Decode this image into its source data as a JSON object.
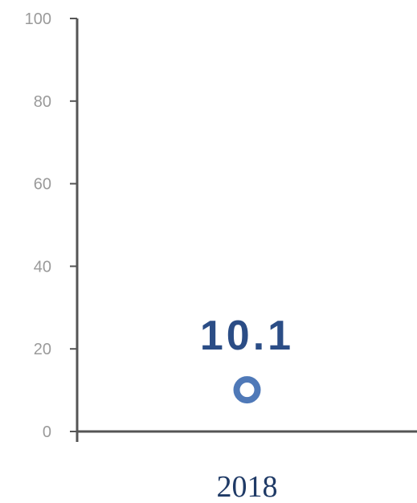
{
  "chart_data": {
    "type": "scatter",
    "title": "",
    "xlabel": "",
    "ylabel": "",
    "categories": [
      "2018"
    ],
    "series": [
      {
        "values": [
          10.1
        ]
      }
    ],
    "data_labels": [
      "10.1"
    ],
    "ylim": [
      0,
      100
    ],
    "yticks": [
      0,
      20,
      40,
      60,
      80,
      100
    ],
    "grid": false,
    "legend": "none",
    "colors": {
      "marker": "#4f79b8",
      "data_label": "#2b4d86",
      "axis": "#555555",
      "tick_text": "#9a9a9a",
      "category_text": "#1f3a66"
    }
  }
}
